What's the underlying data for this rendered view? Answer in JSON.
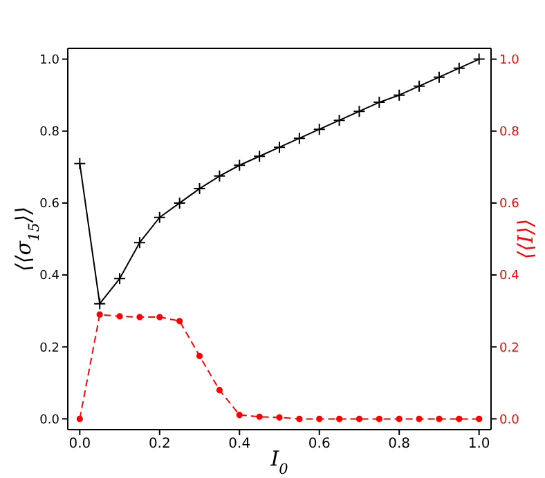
{
  "chart_data": {
    "type": "line",
    "xlabel": "I$_{0}$",
    "ylabel": "⟨⟨σ$_{15}$⟩⟩",
    "y2label": "⟨⟨I⟩⟩",
    "x": [
      0,
      0.05,
      0.1,
      0.15,
      0.2,
      0.25,
      0.3,
      0.35,
      0.4,
      0.45,
      0.5,
      0.55,
      0.6,
      0.65,
      0.7,
      0.75,
      0.8,
      0.85,
      0.9,
      0.95,
      1.0
    ],
    "series": [
      {
        "color": "#000000",
        "marker": "cross",
        "line_style": "solid",
        "values": [
          0.71,
          0.32,
          0.39,
          0.49,
          0.56,
          0.6,
          0.64,
          0.675,
          0.705,
          0.73,
          0.755,
          0.78,
          0.805,
          0.83,
          0.855,
          0.88,
          0.9,
          0.925,
          0.95,
          0.975,
          1.0
        ]
      },
      {
        "color": "#ff0000",
        "marker": "circle",
        "line_style": "dashed",
        "axis": "y2",
        "values": [
          0,
          0.29,
          0.285,
          0.283,
          0.283,
          0.272,
          0.175,
          0.08,
          0.011,
          0.006,
          0.004,
          0,
          0,
          0,
          0,
          0,
          0,
          0,
          0,
          0,
          0
        ]
      }
    ],
    "xlim": [
      -0.03,
      1.03
    ],
    "xticks": [
      {
        "value": 0,
        "label": "0.0"
      },
      0.2,
      0.4,
      0.6,
      0.8,
      {
        "value": 1,
        "label": "1.0"
      }
    ],
    "ylim": [
      -0.03,
      1.03
    ],
    "yticks": [
      {
        "value": 0,
        "label": "0.0"
      },
      0.2,
      0.4,
      0.6,
      0.8,
      {
        "value": 1,
        "label": "1.0"
      }
    ],
    "y2lim": [
      -0.03,
      1.03
    ],
    "y2ticks": [
      {
        "value": 0,
        "label": "0.0"
      },
      0.2,
      0.4,
      0.6,
      0.8,
      {
        "value": 1,
        "label": "1.0"
      }
    ],
    "grid": false,
    "legend": false
  }
}
